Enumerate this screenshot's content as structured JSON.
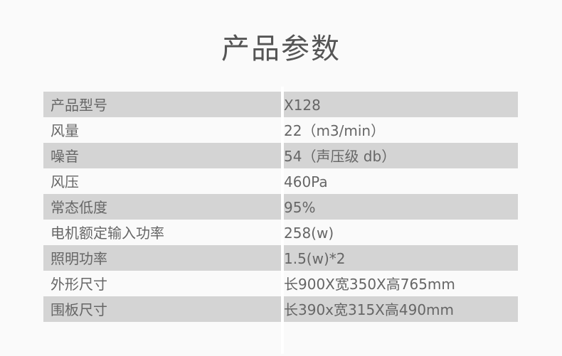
{
  "title": "产品参数",
  "rows": [
    {
      "label": "产品型号",
      "value": "X128"
    },
    {
      "label": "风量",
      "value": "22（m3/min）"
    },
    {
      "label": "噪音",
      "value": "54（声压级 db）"
    },
    {
      "label": "风压",
      "value": "460Pa"
    },
    {
      "label": "常态低度",
      "value": "95%"
    },
    {
      "label": "电机额定输入功率",
      "value": "258(w)"
    },
    {
      "label": "照明功率",
      "value": "1.5(w)*2"
    },
    {
      "label": "外形尺寸",
      "value": "长900X宽350X高765mm"
    },
    {
      "label": "围板尺寸",
      "value": "长390x宽315X高490mm"
    }
  ],
  "colors": {
    "shade": "#d4d4d4",
    "text": "#666666",
    "background": "#fafafa"
  }
}
